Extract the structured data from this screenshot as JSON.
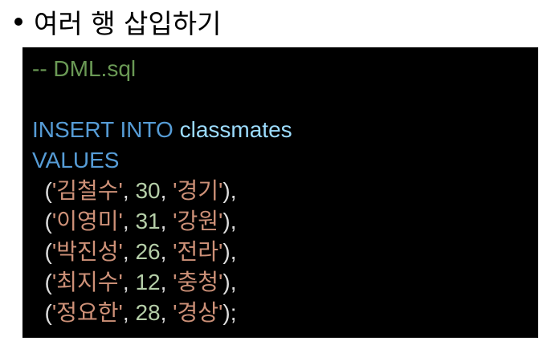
{
  "heading": {
    "text": "여러 행 삽입하기"
  },
  "code": {
    "comment": "-- DML.sql",
    "insert_kw": "INSERT INTO",
    "table_name": "classmates",
    "values_kw": "VALUES",
    "rows": [
      {
        "open": "  (",
        "name": "'김철수'",
        "sep1": ", ",
        "age": "30",
        "sep2": ", ",
        "region": "'경기'",
        "close": "),"
      },
      {
        "open": "  (",
        "name": "'이영미'",
        "sep1": ", ",
        "age": "31",
        "sep2": ", ",
        "region": "'강원'",
        "close": "),"
      },
      {
        "open": "  (",
        "name": "'박진성'",
        "sep1": ", ",
        "age": "26",
        "sep2": ", ",
        "region": "'전라'",
        "close": "),"
      },
      {
        "open": "  (",
        "name": "'최지수'",
        "sep1": ", ",
        "age": "12",
        "sep2": ", ",
        "region": "'충청'",
        "close": "),"
      },
      {
        "open": "  (",
        "name": "'정요한'",
        "sep1": ", ",
        "age": "28",
        "sep2": ", ",
        "region": "'경상'",
        "close": ");"
      }
    ]
  },
  "colors": {
    "background": "#ffffff",
    "code_background": "#000000",
    "comment": "#6a9955",
    "keyword": "#569cd6",
    "identifier": "#9cdcfe",
    "string": "#ce9178",
    "number": "#b5cea8",
    "punctuation": "#dcdcdc"
  }
}
